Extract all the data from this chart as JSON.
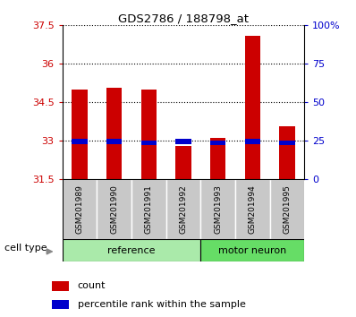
{
  "title": "GDS2786 / 188798_at",
  "samples": [
    "GSM201989",
    "GSM201990",
    "GSM201991",
    "GSM201992",
    "GSM201993",
    "GSM201994",
    "GSM201995"
  ],
  "group_names": [
    "reference",
    "motor neuron"
  ],
  "group_split": 4,
  "count_values": [
    35.0,
    35.05,
    35.0,
    32.8,
    33.1,
    37.1,
    33.55
  ],
  "percentile_values": [
    32.97,
    32.97,
    32.93,
    32.97,
    32.93,
    32.97,
    32.93
  ],
  "y_min": 31.5,
  "y_max": 37.5,
  "y_ticks": [
    31.5,
    33.0,
    34.5,
    36.0,
    37.5
  ],
  "y_tick_labels": [
    "31.5",
    "33",
    "34.5",
    "36",
    "37.5"
  ],
  "right_y_labels": [
    "0",
    "25",
    "50",
    "75",
    "100%"
  ],
  "bar_color": "#cc0000",
  "percentile_color": "#0000cc",
  "label_bg": "#c8c8c8",
  "ref_group_color": "#aaeaaa",
  "motor_group_color": "#66dd66",
  "cell_type_label": "cell type",
  "legend_count": "count",
  "legend_percentile": "percentile rank within the sample",
  "bar_width": 0.45
}
